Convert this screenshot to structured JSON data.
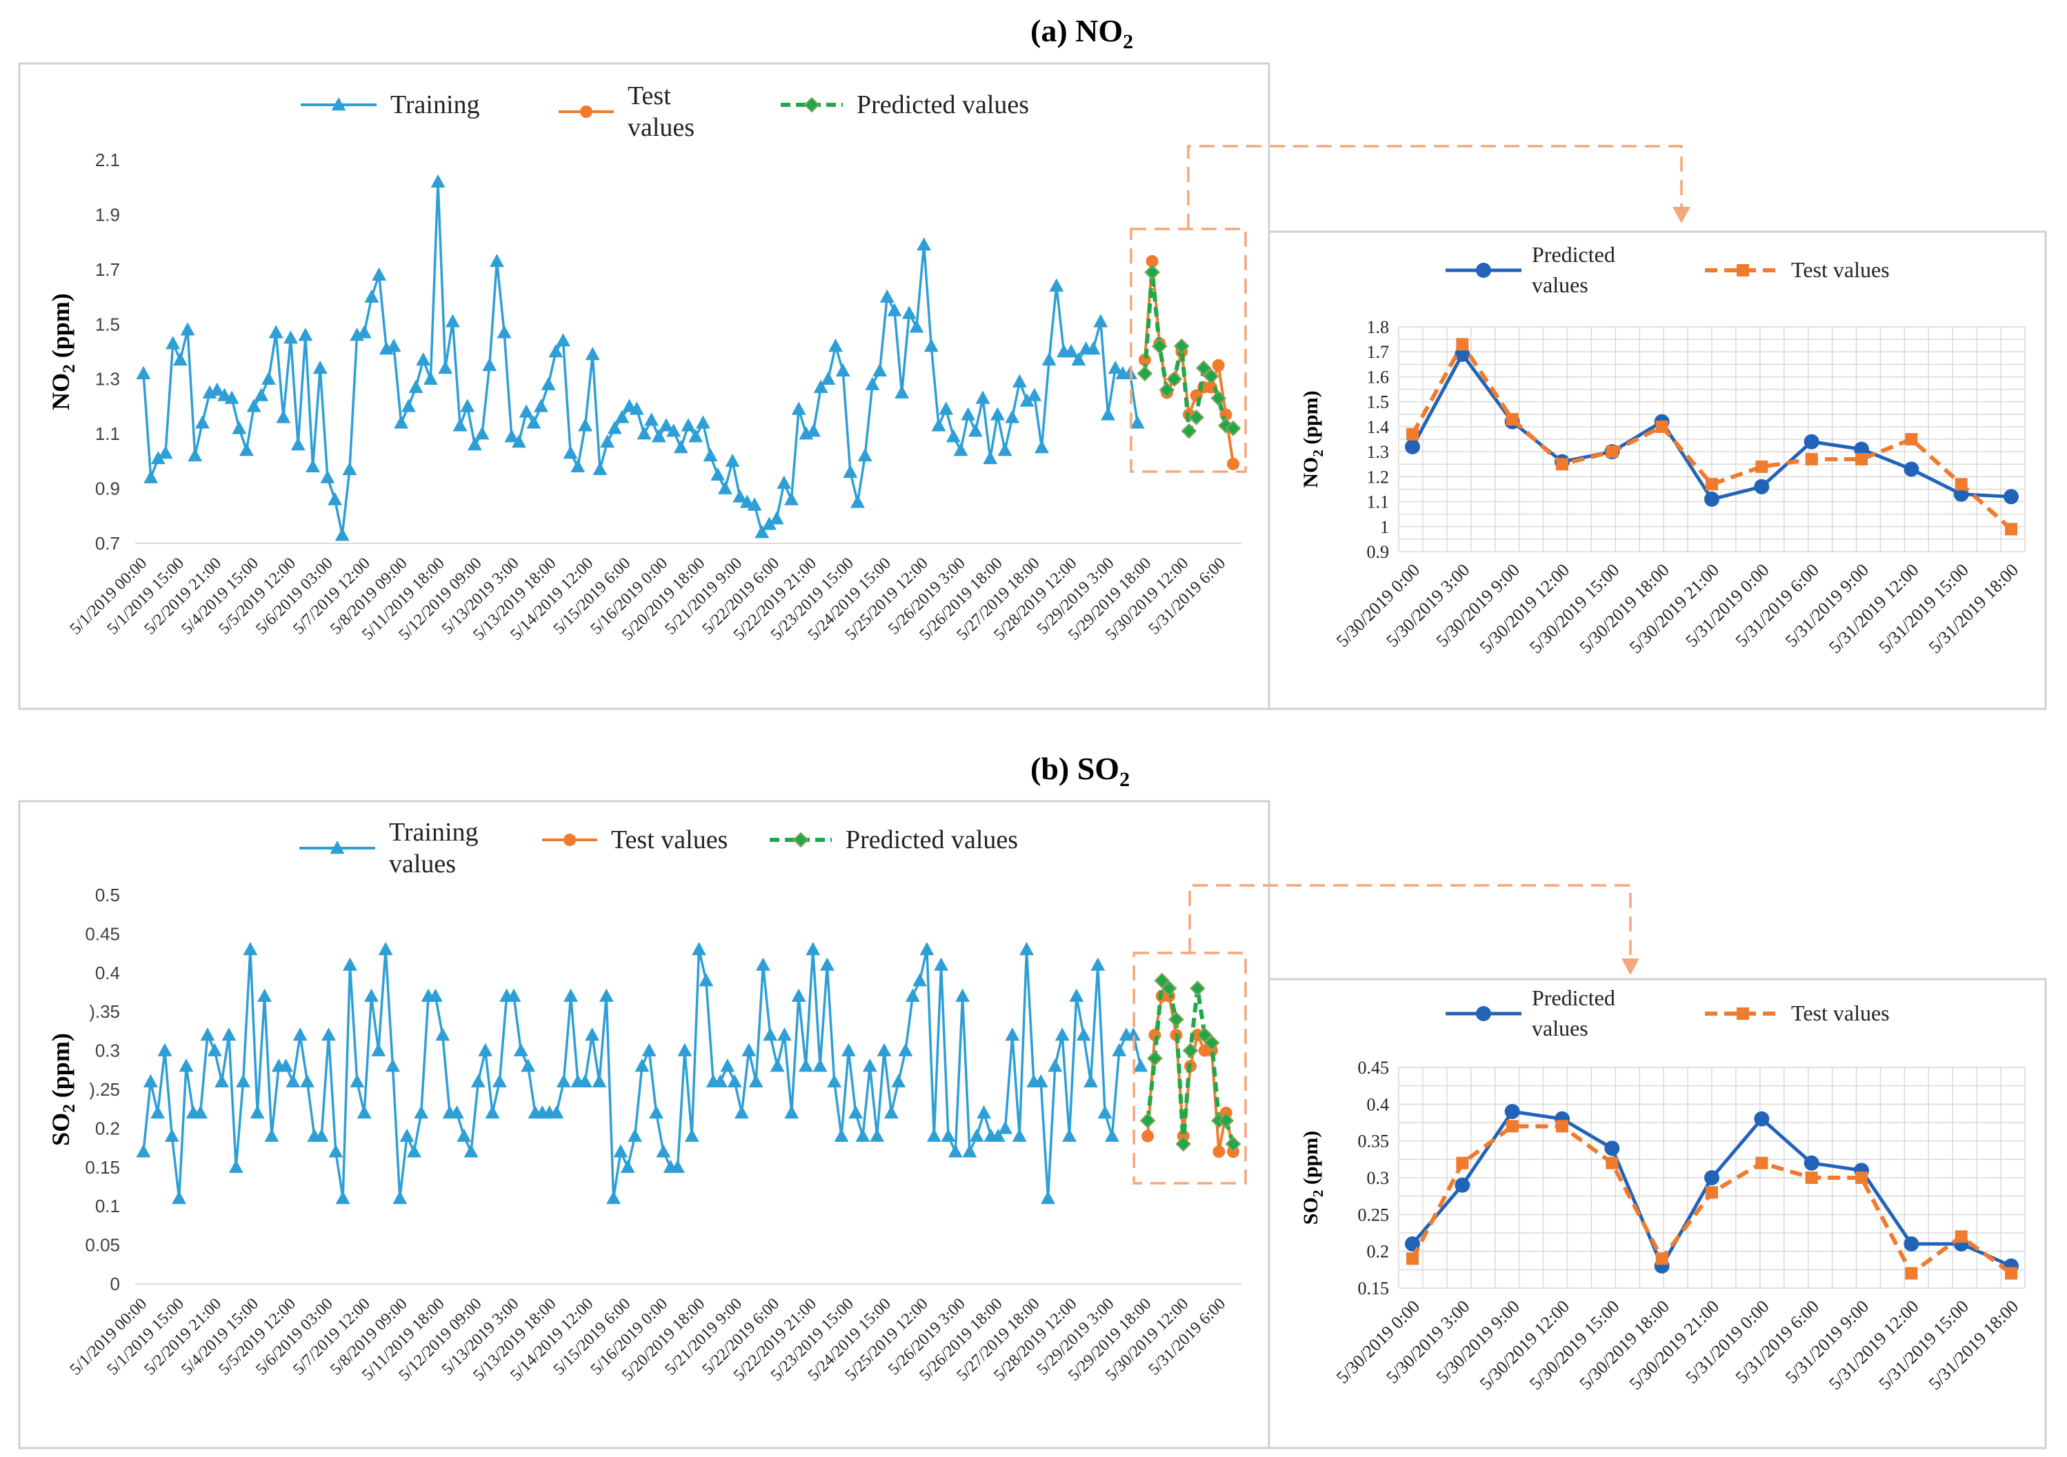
{
  "panels": {
    "a": {
      "label": "(a) NO",
      "sub": "2"
    },
    "b": {
      "label": "(b) SO",
      "sub": "2"
    }
  },
  "colors": {
    "training": "#2e9fd6",
    "test": "#f07b2d",
    "predicted": "#1fa84a",
    "predicted_zoom": "#2263b8",
    "test_zoom": "#f07b2d",
    "highlight": "#f4a77a"
  },
  "x_labels_main": [
    "5/1/2019 00:00",
    "5/1/2019 15:00",
    "5/2/2019 21:00",
    "5/4/2019 15:00",
    "5/5/2019 12:00",
    "5/6/2019 03:00",
    "5/7/2019 12:00",
    "5/8/2019 09:00",
    "5/11/2019 18:00",
    "5/12/2019 09:00",
    "5/13/2019 3:00",
    "5/13/2019 18:00",
    "5/14/2019 12:00",
    "5/15/2019 6:00",
    "5/16/2019 0:00",
    "5/20/2019 18:00",
    "5/21/2019 9:00",
    "5/22/2019 6:00",
    "5/22/2019 21:00",
    "5/23/2019 15:00",
    "5/24/2019 15:00",
    "5/25/2019 12:00",
    "5/26/2019 3:00",
    "5/26/2019 18:00",
    "5/27/2019 18:00",
    "5/28/2019 12:00",
    "5/29/2019 3:00",
    "5/29/2019 18:00",
    "5/30/2019 12:00",
    "5/31/2019 6:00"
  ],
  "x_labels_zoom": [
    "5/30/2019 0:00",
    "5/30/2019 3:00",
    "5/30/2019 9:00",
    "5/30/2019 12:00",
    "5/30/2019 15:00",
    "5/30/2019 18:00",
    "5/30/2019 21:00",
    "5/31/2019 0:00",
    "5/31/2019 6:00",
    "5/31/2019 9:00",
    "5/31/2019 12:00",
    "5/31/2019 15:00",
    "5/31/2019 18:00"
  ],
  "chart_data": [
    {
      "id": "no2_main",
      "type": "line",
      "ylabel": "NO2 (ppm)",
      "ylim": [
        0.7,
        2.1
      ],
      "yticks": [
        "0.7",
        "0.9",
        "1.1",
        "1.3",
        "1.5",
        "1.7",
        "1.9",
        "2.1"
      ],
      "legend": [
        {
          "series": "Training",
          "lines": [
            "Training"
          ]
        },
        {
          "series": "Test values",
          "lines": [
            "Test",
            "values"
          ]
        },
        {
          "series": "Predicted values",
          "lines": [
            "Predicted values"
          ]
        }
      ],
      "series": [
        {
          "name": "Training",
          "values": [
            1.32,
            0.94,
            1.01,
            1.03,
            1.43,
            1.37,
            1.48,
            1.02,
            1.14,
            1.25,
            1.26,
            1.24,
            1.23,
            1.12,
            1.04,
            1.2,
            1.24,
            1.3,
            1.47,
            1.16,
            1.45,
            1.06,
            1.46,
            0.98,
            1.34,
            0.94,
            0.86,
            0.73,
            0.97,
            1.46,
            1.47,
            1.6,
            1.68,
            1.41,
            1.42,
            1.14,
            1.2,
            1.27,
            1.37,
            1.3,
            2.02,
            1.34,
            1.51,
            1.13,
            1.2,
            1.06,
            1.1,
            1.35,
            1.73,
            1.47,
            1.09,
            1.07,
            1.18,
            1.14,
            1.2,
            1.28,
            1.4,
            1.44,
            1.03,
            0.98,
            1.13,
            1.39,
            0.97,
            1.07,
            1.12,
            1.16,
            1.2,
            1.19,
            1.1,
            1.15,
            1.09,
            1.13,
            1.11,
            1.05,
            1.13,
            1.09,
            1.14,
            1.02,
            0.95,
            0.9,
            1.0,
            0.87,
            0.85,
            0.84,
            0.74,
            0.77,
            0.79,
            0.92,
            0.86,
            1.19,
            1.1,
            1.11,
            1.27,
            1.3,
            1.42,
            1.33,
            0.96,
            0.85,
            1.02,
            1.28,
            1.33,
            1.6,
            1.55,
            1.25,
            1.54,
            1.49,
            1.79,
            1.42,
            1.13,
            1.19,
            1.09,
            1.04,
            1.17,
            1.11,
            1.23,
            1.01,
            1.17,
            1.04,
            1.16,
            1.29,
            1.22,
            1.24,
            1.05,
            1.37,
            1.64,
            1.4,
            1.4,
            1.37,
            1.41,
            1.41,
            1.51,
            1.17,
            1.34,
            1.32,
            1.32,
            1.14
          ]
        },
        {
          "name": "Test values",
          "values": [
            1.37,
            1.73,
            1.43,
            1.25,
            1.3,
            1.4,
            1.17,
            1.24,
            1.27,
            1.27,
            1.35,
            1.17,
            0.99
          ]
        },
        {
          "name": "Predicted values",
          "values": [
            1.32,
            1.69,
            1.42,
            1.26,
            1.3,
            1.42,
            1.11,
            1.16,
            1.34,
            1.31,
            1.23,
            1.13,
            1.12
          ]
        }
      ]
    },
    {
      "id": "no2_zoom",
      "type": "line",
      "ylabel": "NO2 (ppm)",
      "ylim": [
        0.9,
        1.8
      ],
      "yticks": [
        "0.9",
        "1",
        "1.1",
        "1.2",
        "1.3",
        "1.4",
        "1.5",
        "1.6",
        "1.7",
        "1.8"
      ],
      "legend": [
        {
          "series": "Predicted values",
          "lines": [
            "Predicted",
            "values"
          ]
        },
        {
          "series": "Test values",
          "lines": [
            "Test values"
          ]
        }
      ],
      "series": [
        {
          "name": "Predicted values",
          "values": [
            1.32,
            1.69,
            1.42,
            1.26,
            1.3,
            1.42,
            1.11,
            1.16,
            1.34,
            1.31,
            1.23,
            1.13,
            1.12
          ]
        },
        {
          "name": "Test values",
          "values": [
            1.37,
            1.73,
            1.43,
            1.25,
            1.3,
            1.4,
            1.17,
            1.24,
            1.27,
            1.27,
            1.35,
            1.17,
            0.99
          ]
        }
      ]
    },
    {
      "id": "so2_main",
      "type": "line",
      "ylabel": "SO2 (ppm)",
      "ylim": [
        0,
        0.5
      ],
      "yticks": [
        "0",
        "0.05",
        "0.1",
        "0.15",
        "0.2",
        ").25",
        "0.3",
        ").35",
        "0.4",
        "0.45",
        "0.5"
      ],
      "legend": [
        {
          "series": "Training values",
          "lines": [
            "Training",
            "values"
          ]
        },
        {
          "series": "Test values",
          "lines": [
            "Test values"
          ]
        },
        {
          "series": "Predicted values",
          "lines": [
            "Predicted values"
          ]
        }
      ],
      "series": [
        {
          "name": "Training values",
          "values": [
            0.17,
            0.26,
            0.22,
            0.3,
            0.19,
            0.11,
            0.28,
            0.22,
            0.22,
            0.32,
            0.3,
            0.26,
            0.32,
            0.15,
            0.26,
            0.43,
            0.22,
            0.37,
            0.19,
            0.28,
            0.28,
            0.26,
            0.32,
            0.26,
            0.19,
            0.19,
            0.32,
            0.17,
            0.11,
            0.41,
            0.26,
            0.22,
            0.37,
            0.3,
            0.43,
            0.28,
            0.11,
            0.19,
            0.17,
            0.22,
            0.37,
            0.37,
            0.32,
            0.22,
            0.22,
            0.19,
            0.17,
            0.26,
            0.3,
            0.22,
            0.26,
            0.37,
            0.37,
            0.3,
            0.28,
            0.22,
            0.22,
            0.22,
            0.22,
            0.26,
            0.37,
            0.26,
            0.26,
            0.32,
            0.26,
            0.37,
            0.11,
            0.17,
            0.15,
            0.19,
            0.28,
            0.3,
            0.22,
            0.17,
            0.15,
            0.15,
            0.3,
            0.19,
            0.43,
            0.39,
            0.26,
            0.26,
            0.28,
            0.26,
            0.22,
            0.3,
            0.26,
            0.41,
            0.32,
            0.28,
            0.32,
            0.22,
            0.37,
            0.28,
            0.43,
            0.28,
            0.41,
            0.26,
            0.19,
            0.3,
            0.22,
            0.19,
            0.28,
            0.19,
            0.3,
            0.22,
            0.26,
            0.3,
            0.37,
            0.39,
            0.43,
            0.19,
            0.41,
            0.19,
            0.17,
            0.37,
            0.17,
            0.19,
            0.22,
            0.19,
            0.19,
            0.2,
            0.32,
            0.19,
            0.43,
            0.26,
            0.26,
            0.11,
            0.28,
            0.32,
            0.19,
            0.37,
            0.32,
            0.26,
            0.41,
            0.22,
            0.19,
            0.3,
            0.32,
            0.32,
            0.28
          ]
        },
        {
          "name": "Test values",
          "values": [
            0.19,
            0.32,
            0.37,
            0.37,
            0.32,
            0.19,
            0.28,
            0.32,
            0.3,
            0.3,
            0.17,
            0.22,
            0.17
          ]
        },
        {
          "name": "Predicted values",
          "values": [
            0.21,
            0.29,
            0.39,
            0.38,
            0.34,
            0.18,
            0.3,
            0.38,
            0.32,
            0.31,
            0.21,
            0.21,
            0.18
          ]
        }
      ]
    },
    {
      "id": "so2_zoom",
      "type": "line",
      "ylabel": "SO2 (ppm)",
      "ylim": [
        0.15,
        0.45
      ],
      "yticks": [
        "0.15",
        "0.2",
        "0.25",
        "0.3",
        "0.35",
        "0.4",
        "0.45"
      ],
      "legend": [
        {
          "series": "Predicted values",
          "lines": [
            "Predicted",
            "values"
          ]
        },
        {
          "series": "Test values",
          "lines": [
            "Test values"
          ]
        }
      ],
      "series": [
        {
          "name": "Predicted values",
          "values": [
            0.21,
            0.29,
            0.39,
            0.38,
            0.34,
            0.18,
            0.3,
            0.38,
            0.32,
            0.31,
            0.21,
            0.21,
            0.18
          ]
        },
        {
          "name": "Test values",
          "values": [
            0.19,
            0.32,
            0.37,
            0.37,
            0.32,
            0.19,
            0.28,
            0.32,
            0.3,
            0.3,
            0.17,
            0.22,
            0.17
          ]
        }
      ]
    }
  ]
}
